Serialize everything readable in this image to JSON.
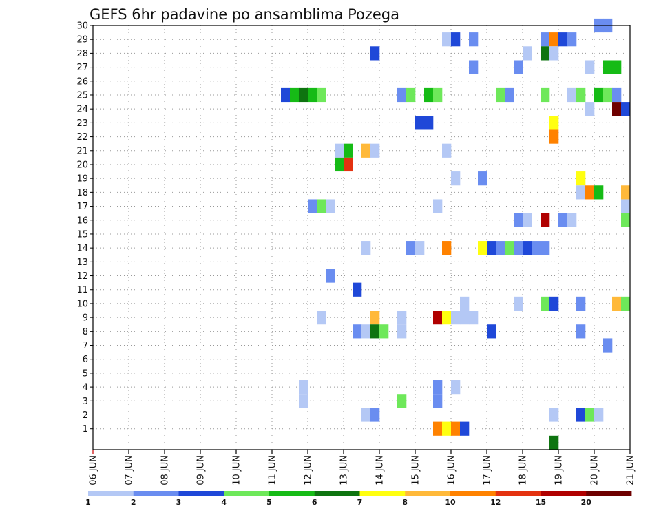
{
  "chart_data": {
    "type": "heatmap",
    "title": "GEFS 6hr padavine po ansamblima Pozega",
    "x_ticks": [
      "06 JUN",
      "07 JUN",
      "08 JUN",
      "09 JUN",
      "10 JUN",
      "11 JUN",
      "12 JUN",
      "13 JUN",
      "14 JUN",
      "15 JUN",
      "16 JUN",
      "17 JUN",
      "18 JUN",
      "19 JUN",
      "20 JUN",
      "21 JUN"
    ],
    "x_range_days": [
      6,
      21
    ],
    "y_ticks": [
      "1",
      "2",
      "3",
      "4",
      "5",
      "6",
      "7",
      "8",
      "9",
      "10",
      "11",
      "12",
      "13",
      "14",
      "15",
      "16",
      "17",
      "18",
      "19",
      "20",
      "21",
      "22",
      "23",
      "24",
      "25",
      "26",
      "27",
      "28",
      "29",
      "30"
    ],
    "y_range_members": [
      0,
      30
    ],
    "grid": true,
    "colorbar": {
      "labels": [
        "1",
        "2",
        "3",
        "4",
        "5",
        "6",
        "7",
        "8",
        "10",
        "12",
        "15",
        "20"
      ],
      "colors": [
        "#b4c8f5",
        "#6a8df0",
        "#1f48d8",
        "#6ee85a",
        "#16bb16",
        "#0e7410",
        "#ffff10",
        "#ffb93a",
        "#ff8200",
        "#e43210",
        "#b00000",
        "#6e0000"
      ]
    },
    "cells": [
      {
        "member": 30,
        "day": 20.0,
        "mm": 2
      },
      {
        "member": 30,
        "day": 20.25,
        "mm": 2
      },
      {
        "member": 29,
        "day": 15.75,
        "mm": 1
      },
      {
        "member": 29,
        "day": 16.0,
        "mm": 3
      },
      {
        "member": 29,
        "day": 16.5,
        "mm": 2
      },
      {
        "member": 29,
        "day": 18.5,
        "mm": 2
      },
      {
        "member": 29,
        "day": 18.75,
        "mm": 10
      },
      {
        "member": 29,
        "day": 19.0,
        "mm": 3
      },
      {
        "member": 29,
        "day": 19.25,
        "mm": 2
      },
      {
        "member": 28,
        "day": 13.75,
        "mm": 3
      },
      {
        "member": 28,
        "day": 18.0,
        "mm": 1
      },
      {
        "member": 28,
        "day": 18.5,
        "mm": 6
      },
      {
        "member": 28,
        "day": 18.75,
        "mm": 1
      },
      {
        "member": 27,
        "day": 16.5,
        "mm": 2
      },
      {
        "member": 27,
        "day": 17.75,
        "mm": 2
      },
      {
        "member": 27,
        "day": 19.75,
        "mm": 1
      },
      {
        "member": 27,
        "day": 20.25,
        "mm": 5
      },
      {
        "member": 27,
        "day": 20.5,
        "mm": 5
      },
      {
        "member": 25,
        "day": 11.25,
        "mm": 3
      },
      {
        "member": 25,
        "day": 11.5,
        "mm": 5
      },
      {
        "member": 25,
        "day": 11.75,
        "mm": 6
      },
      {
        "member": 25,
        "day": 12.0,
        "mm": 5
      },
      {
        "member": 25,
        "day": 12.25,
        "mm": 4
      },
      {
        "member": 25,
        "day": 14.5,
        "mm": 2
      },
      {
        "member": 25,
        "day": 14.75,
        "mm": 4
      },
      {
        "member": 25,
        "day": 15.25,
        "mm": 5
      },
      {
        "member": 25,
        "day": 15.5,
        "mm": 4
      },
      {
        "member": 25,
        "day": 17.25,
        "mm": 4
      },
      {
        "member": 25,
        "day": 17.5,
        "mm": 2
      },
      {
        "member": 25,
        "day": 18.5,
        "mm": 4
      },
      {
        "member": 25,
        "day": 19.25,
        "mm": 1
      },
      {
        "member": 25,
        "day": 19.5,
        "mm": 4
      },
      {
        "member": 25,
        "day": 20.0,
        "mm": 5
      },
      {
        "member": 25,
        "day": 20.25,
        "mm": 4
      },
      {
        "member": 25,
        "day": 20.5,
        "mm": 2
      },
      {
        "member": 24,
        "day": 19.75,
        "mm": 1
      },
      {
        "member": 24,
        "day": 20.5,
        "mm": 20
      },
      {
        "member": 24,
        "day": 20.75,
        "mm": 3
      },
      {
        "member": 23,
        "day": 15.0,
        "mm": 3
      },
      {
        "member": 23,
        "day": 15.25,
        "mm": 3
      },
      {
        "member": 23,
        "day": 18.75,
        "mm": 7
      },
      {
        "member": 22,
        "day": 18.75,
        "mm": 10
      },
      {
        "member": 21,
        "day": 12.75,
        "mm": 1
      },
      {
        "member": 21,
        "day": 13.0,
        "mm": 5
      },
      {
        "member": 21,
        "day": 13.5,
        "mm": 8
      },
      {
        "member": 21,
        "day": 13.75,
        "mm": 1
      },
      {
        "member": 21,
        "day": 15.75,
        "mm": 1
      },
      {
        "member": 20,
        "day": 12.75,
        "mm": 5
      },
      {
        "member": 20,
        "day": 13.0,
        "mm": 12
      },
      {
        "member": 19,
        "day": 16.0,
        "mm": 1
      },
      {
        "member": 19,
        "day": 16.75,
        "mm": 2
      },
      {
        "member": 19,
        "day": 19.5,
        "mm": 7
      },
      {
        "member": 18,
        "day": 19.5,
        "mm": 1
      },
      {
        "member": 18,
        "day": 19.75,
        "mm": 10
      },
      {
        "member": 18,
        "day": 20.0,
        "mm": 5
      },
      {
        "member": 18,
        "day": 20.75,
        "mm": 8
      },
      {
        "member": 17,
        "day": 12.0,
        "mm": 2
      },
      {
        "member": 17,
        "day": 12.25,
        "mm": 4
      },
      {
        "member": 17,
        "day": 12.5,
        "mm": 1
      },
      {
        "member": 17,
        "day": 15.5,
        "mm": 1
      },
      {
        "member": 17,
        "day": 20.75,
        "mm": 1
      },
      {
        "member": 16,
        "day": 17.75,
        "mm": 2
      },
      {
        "member": 16,
        "day": 18.0,
        "mm": 1
      },
      {
        "member": 16,
        "day": 18.5,
        "mm": 15
      },
      {
        "member": 16,
        "day": 19.0,
        "mm": 2
      },
      {
        "member": 16,
        "day": 19.25,
        "mm": 1
      },
      {
        "member": 16,
        "day": 20.75,
        "mm": 4
      },
      {
        "member": 14,
        "day": 13.5,
        "mm": 1
      },
      {
        "member": 14,
        "day": 14.75,
        "mm": 2
      },
      {
        "member": 14,
        "day": 15.0,
        "mm": 1
      },
      {
        "member": 14,
        "day": 15.75,
        "mm": 10
      },
      {
        "member": 14,
        "day": 16.75,
        "mm": 7
      },
      {
        "member": 14,
        "day": 17.0,
        "mm": 3
      },
      {
        "member": 14,
        "day": 17.25,
        "mm": 2
      },
      {
        "member": 14,
        "day": 17.5,
        "mm": 4
      },
      {
        "member": 14,
        "day": 17.75,
        "mm": 2
      },
      {
        "member": 14,
        "day": 18.0,
        "mm": 3
      },
      {
        "member": 14,
        "day": 18.25,
        "mm": 2
      },
      {
        "member": 14,
        "day": 18.5,
        "mm": 2
      },
      {
        "member": 12,
        "day": 12.5,
        "mm": 2
      },
      {
        "member": 11,
        "day": 13.25,
        "mm": 3
      },
      {
        "member": 10,
        "day": 16.25,
        "mm": 1
      },
      {
        "member": 10,
        "day": 17.75,
        "mm": 1
      },
      {
        "member": 10,
        "day": 18.5,
        "mm": 4
      },
      {
        "member": 10,
        "day": 18.75,
        "mm": 3
      },
      {
        "member": 10,
        "day": 19.5,
        "mm": 2
      },
      {
        "member": 10,
        "day": 20.5,
        "mm": 8
      },
      {
        "member": 10,
        "day": 20.75,
        "mm": 4
      },
      {
        "member": 9,
        "day": 12.25,
        "mm": 1
      },
      {
        "member": 9,
        "day": 13.75,
        "mm": 8
      },
      {
        "member": 9,
        "day": 14.5,
        "mm": 1
      },
      {
        "member": 9,
        "day": 15.5,
        "mm": 15
      },
      {
        "member": 9,
        "day": 15.75,
        "mm": 7
      },
      {
        "member": 9,
        "day": 16.0,
        "mm": 1
      },
      {
        "member": 9,
        "day": 16.25,
        "mm": 1
      },
      {
        "member": 9,
        "day": 16.5,
        "mm": 1
      },
      {
        "member": 8,
        "day": 13.25,
        "mm": 2
      },
      {
        "member": 8,
        "day": 13.5,
        "mm": 1
      },
      {
        "member": 8,
        "day": 13.75,
        "mm": 6
      },
      {
        "member": 8,
        "day": 14.0,
        "mm": 4
      },
      {
        "member": 8,
        "day": 14.5,
        "mm": 1
      },
      {
        "member": 8,
        "day": 17.0,
        "mm": 3
      },
      {
        "member": 8,
        "day": 19.5,
        "mm": 2
      },
      {
        "member": 7,
        "day": 20.25,
        "mm": 2
      },
      {
        "member": 4,
        "day": 11.75,
        "mm": 1
      },
      {
        "member": 4,
        "day": 15.5,
        "mm": 2
      },
      {
        "member": 4,
        "day": 16.0,
        "mm": 1
      },
      {
        "member": 3,
        "day": 11.75,
        "mm": 1
      },
      {
        "member": 3,
        "day": 14.5,
        "mm": 4
      },
      {
        "member": 3,
        "day": 15.5,
        "mm": 2
      },
      {
        "member": 2,
        "day": 13.5,
        "mm": 1
      },
      {
        "member": 2,
        "day": 13.75,
        "mm": 2
      },
      {
        "member": 2,
        "day": 18.75,
        "mm": 1
      },
      {
        "member": 2,
        "day": 19.5,
        "mm": 3
      },
      {
        "member": 2,
        "day": 19.75,
        "mm": 4
      },
      {
        "member": 2,
        "day": 20.0,
        "mm": 1
      },
      {
        "member": 1,
        "day": 15.5,
        "mm": 10
      },
      {
        "member": 1,
        "day": 15.75,
        "mm": 7
      },
      {
        "member": 1,
        "day": 16.0,
        "mm": 10
      },
      {
        "member": 1,
        "day": 16.25,
        "mm": 3
      },
      {
        "member": 0,
        "day": 18.75,
        "mm": 6
      }
    ]
  }
}
